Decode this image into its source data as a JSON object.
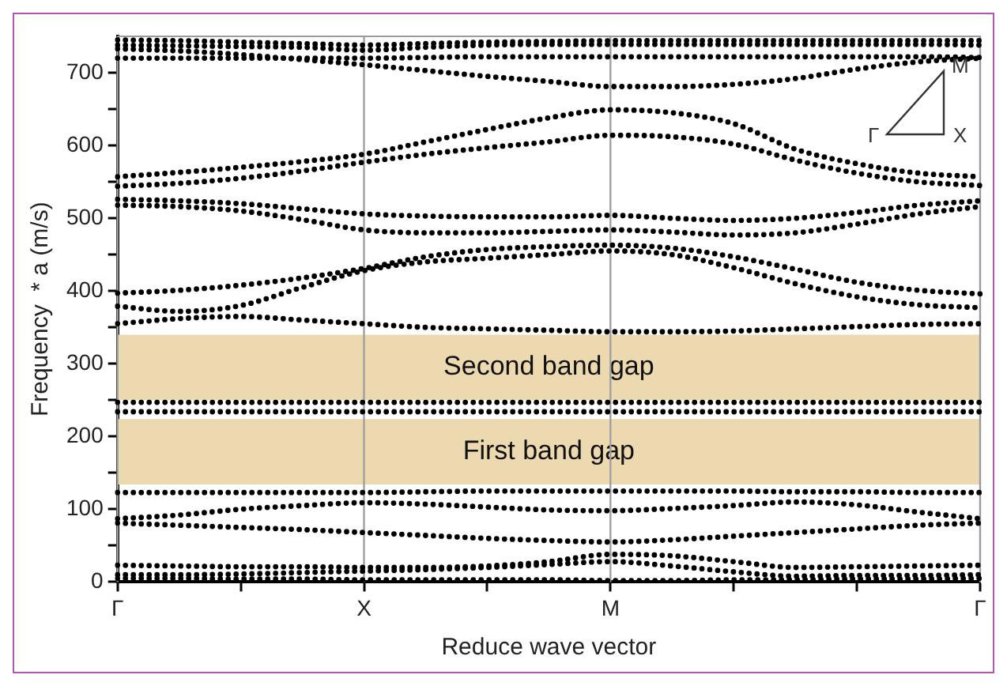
{
  "chart_data": {
    "type": "line",
    "xlabel": "Reduce wave vector",
    "ylabel": "Frequency  * a (m/s)",
    "categories": [
      "Γ",
      null,
      null,
      null,
      "X",
      null,
      null,
      null,
      "M",
      null,
      null,
      null,
      null,
      null,
      "Γ"
    ],
    "ylim": [
      0,
      750
    ],
    "yticks": [
      0,
      {
        "value": 50,
        "label": null
      },
      100,
      {
        "value": 150,
        "label": null
      },
      200,
      {
        "value": 250,
        "label": null
      },
      300,
      {
        "value": 350,
        "label": null
      },
      400,
      {
        "value": 450,
        "label": null
      },
      500,
      {
        "value": 550,
        "label": null
      },
      600,
      {
        "value": 650,
        "label": null
      },
      700
    ],
    "grid": "x",
    "marker": "none",
    "line_style": "dotted",
    "legend": false,
    "series": [
      {
        "color": "#000000",
        "values": [
          745,
          744,
          742,
          740,
          738,
          740,
          742,
          743,
          744,
          744,
          744,
          744,
          744,
          744,
          744
        ]
      },
      {
        "color": "#000000",
        "values": [
          738,
          737,
          736,
          735,
          731,
          735,
          738,
          739,
          739,
          739,
          739,
          739,
          739,
          739,
          738
        ]
      },
      {
        "color": "#000000",
        "values": [
          720,
          720,
          720,
          720,
          720,
          721,
          722,
          722,
          722,
          722,
          722,
          722,
          722,
          722,
          721
        ]
      },
      {
        "color": "#000000",
        "values": [
          733,
          730,
          725,
          718,
          711,
          703,
          695,
          688,
          681,
          681,
          684,
          692,
          705,
          715,
          720
        ]
      },
      {
        "color": "#000000",
        "values": [
          557,
          563,
          570,
          578,
          588,
          605,
          622,
          638,
          649,
          645,
          630,
          595,
          575,
          562,
          557
        ]
      },
      {
        "color": "#000000",
        "values": [
          544,
          548,
          555,
          565,
          577,
          588,
          597,
          605,
          614,
          612,
          602,
          580,
          562,
          550,
          545
        ]
      },
      {
        "color": "#000000",
        "values": [
          526,
          524,
          520,
          513,
          506,
          503,
          502,
          502,
          504,
          500,
          497,
          500,
          508,
          518,
          524
        ]
      },
      {
        "color": "#000000",
        "values": [
          518,
          516,
          510,
          498,
          484,
          480,
          480,
          482,
          484,
          481,
          477,
          480,
          492,
          506,
          516
        ]
      },
      {
        "color": "#000000",
        "values": [
          397,
          401,
          408,
          418,
          431,
          447,
          457,
          461,
          463,
          459,
          447,
          430,
          412,
          401,
          396
        ]
      },
      {
        "color": "#000000",
        "values": [
          379,
          372,
          380,
          405,
          428,
          440,
          445,
          450,
          455,
          450,
          432,
          410,
          392,
          381,
          377
        ]
      },
      {
        "color": "#000000",
        "values": [
          355,
          362,
          365,
          360,
          355,
          350,
          348,
          346,
          344,
          344,
          345,
          348,
          351,
          354,
          355
        ]
      },
      {
        "color": "#000000",
        "values": [
          247,
          247,
          247,
          247,
          247,
          247,
          247,
          247,
          247,
          247,
          247,
          247,
          247,
          247,
          247
        ]
      },
      {
        "color": "#000000",
        "values": [
          234,
          234,
          234,
          234,
          234,
          234,
          234,
          234,
          234,
          234,
          234,
          234,
          234,
          234,
          234
        ]
      },
      {
        "color": "#000000",
        "values": [
          123,
          123,
          123,
          123,
          123,
          124,
          125,
          125,
          125,
          125,
          125,
          124,
          124,
          123,
          123
        ]
      },
      {
        "color": "#000000",
        "values": [
          87,
          92,
          100,
          105,
          109,
          107,
          103,
          99,
          98,
          101,
          105,
          110,
          106,
          96,
          87
        ]
      },
      {
        "color": "#000000",
        "values": [
          81,
          78,
          75,
          72,
          68,
          64,
          60,
          57,
          55,
          58,
          63,
          68,
          73,
          78,
          81
        ]
      },
      {
        "color": "#000000",
        "values": [
          23,
          22,
          21,
          21,
          20,
          20,
          22,
          28,
          38,
          36,
          28,
          20,
          21,
          22,
          23
        ]
      },
      {
        "color": "#000000",
        "values": [
          10,
          10,
          11,
          13,
          15,
          17,
          20,
          24,
          28,
          22,
          14,
          8,
          9,
          9,
          10
        ]
      },
      {
        "color": "#000000",
        "values": [
          5,
          5,
          4,
          4,
          3,
          3,
          3,
          3,
          2,
          2,
          3,
          3,
          4,
          4,
          5
        ]
      }
    ],
    "bands": [
      {
        "axis": "y",
        "from": 134,
        "to": 224,
        "label": "First band gap",
        "color": "#ecd9b0"
      },
      {
        "axis": "y",
        "from": 250,
        "to": 340,
        "label": "Second band gap",
        "color": "#ecd9b0"
      }
    ],
    "annotations": [
      "Γ",
      "M",
      "X"
    ]
  }
}
